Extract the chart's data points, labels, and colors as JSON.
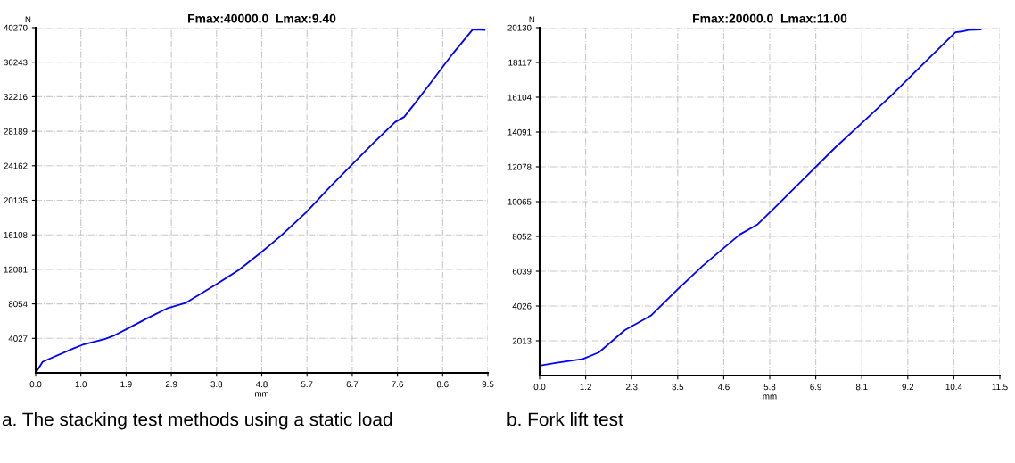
{
  "chart_data": [
    {
      "type": "line",
      "title": "Fmax:40000.0  Lmax:9.40",
      "xlabel": "mm",
      "ylabel": "N",
      "annotations": [
        "a. The stacking test methods using a static load"
      ],
      "x": [
        0,
        0.147,
        0.78,
        0.985,
        1.45,
        1.66,
        1.92,
        2.33,
        2.76,
        3.16,
        3.8,
        4.27,
        4.74,
        5.14,
        5.68,
        6.15,
        6.68,
        7.08,
        7.55,
        7.74,
        7.96,
        8.36,
        8.76,
        9.18,
        9.43
      ],
      "series": [
        {
          "color": "#0000ff",
          "values": [
            0,
            1300,
            2830,
            3280,
            3950,
            4390,
            5140,
            6330,
            7520,
            8190,
            10350,
            12020,
            14070,
            15930,
            18720,
            21510,
            24490,
            26720,
            29250,
            29850,
            31380,
            34280,
            37220,
            40050,
            40010
          ]
        }
      ],
      "xlim": [
        0,
        9.5
      ],
      "ylim": [
        0,
        40270
      ],
      "xticks": [
        {
          "value": 0,
          "label": "0.0"
        },
        {
          "value": 0.95,
          "label": "1.0"
        },
        {
          "value": 1.9,
          "label": "1.9"
        },
        {
          "value": 2.85,
          "label": "2.9"
        },
        {
          "value": 3.8,
          "label": "3.8"
        },
        {
          "value": 4.75,
          "label": "4.8"
        },
        {
          "value": 5.7,
          "label": "5.7"
        },
        {
          "value": 6.65,
          "label": "6.7"
        },
        {
          "value": 7.6,
          "label": "7.6"
        },
        {
          "value": 8.55,
          "label": "8.6"
        },
        {
          "value": 9.5,
          "label": "9.5"
        }
      ],
      "yticks": [
        4027,
        8054,
        12081,
        16108,
        20135,
        24162,
        28189,
        32216,
        36243,
        40270
      ],
      "grid": true,
      "marker": "none",
      "line_style": "solid"
    },
    {
      "type": "line",
      "title": "Fmax:20000.0  Lmax:11.00",
      "xlabel": "mm",
      "ylabel": "N",
      "annotations": [
        "b. Fork lift test"
      ],
      "x": [
        0,
        0.43,
        1.08,
        1.48,
        2.13,
        2.78,
        3.43,
        4.07,
        5.0,
        5.45,
        5.94,
        6.58,
        7.39,
        8.04,
        8.77,
        9.58,
        10.39,
        10.55,
        10.71,
        11.02
      ],
      "series": [
        {
          "color": "#0000ff",
          "values": [
            575,
            740,
            960,
            1340,
            2630,
            3470,
            4950,
            6340,
            8160,
            8750,
            9860,
            11340,
            13200,
            14590,
            16160,
            18020,
            19870,
            19910,
            20000,
            20020
          ]
        }
      ],
      "xlim": [
        0,
        11.5
      ],
      "ylim": [
        0,
        20130
      ],
      "xticks": [
        {
          "value": 0,
          "label": "0.0"
        },
        {
          "value": 1.15,
          "label": "1.2"
        },
        {
          "value": 2.3,
          "label": "2.3"
        },
        {
          "value": 3.45,
          "label": "3.5"
        },
        {
          "value": 4.6,
          "label": "4.6"
        },
        {
          "value": 5.75,
          "label": "5.8"
        },
        {
          "value": 6.9,
          "label": "6.9"
        },
        {
          "value": 8.05,
          "label": "8.1"
        },
        {
          "value": 9.2,
          "label": "9.2"
        },
        {
          "value": 10.35,
          "label": "10.4"
        },
        {
          "value": 11.5,
          "label": "11.5"
        }
      ],
      "yticks": [
        2013,
        4026,
        6039,
        8052,
        10065,
        12078,
        14091,
        16104,
        18117,
        20130
      ],
      "grid": true,
      "marker": "none",
      "line_style": "solid"
    }
  ]
}
